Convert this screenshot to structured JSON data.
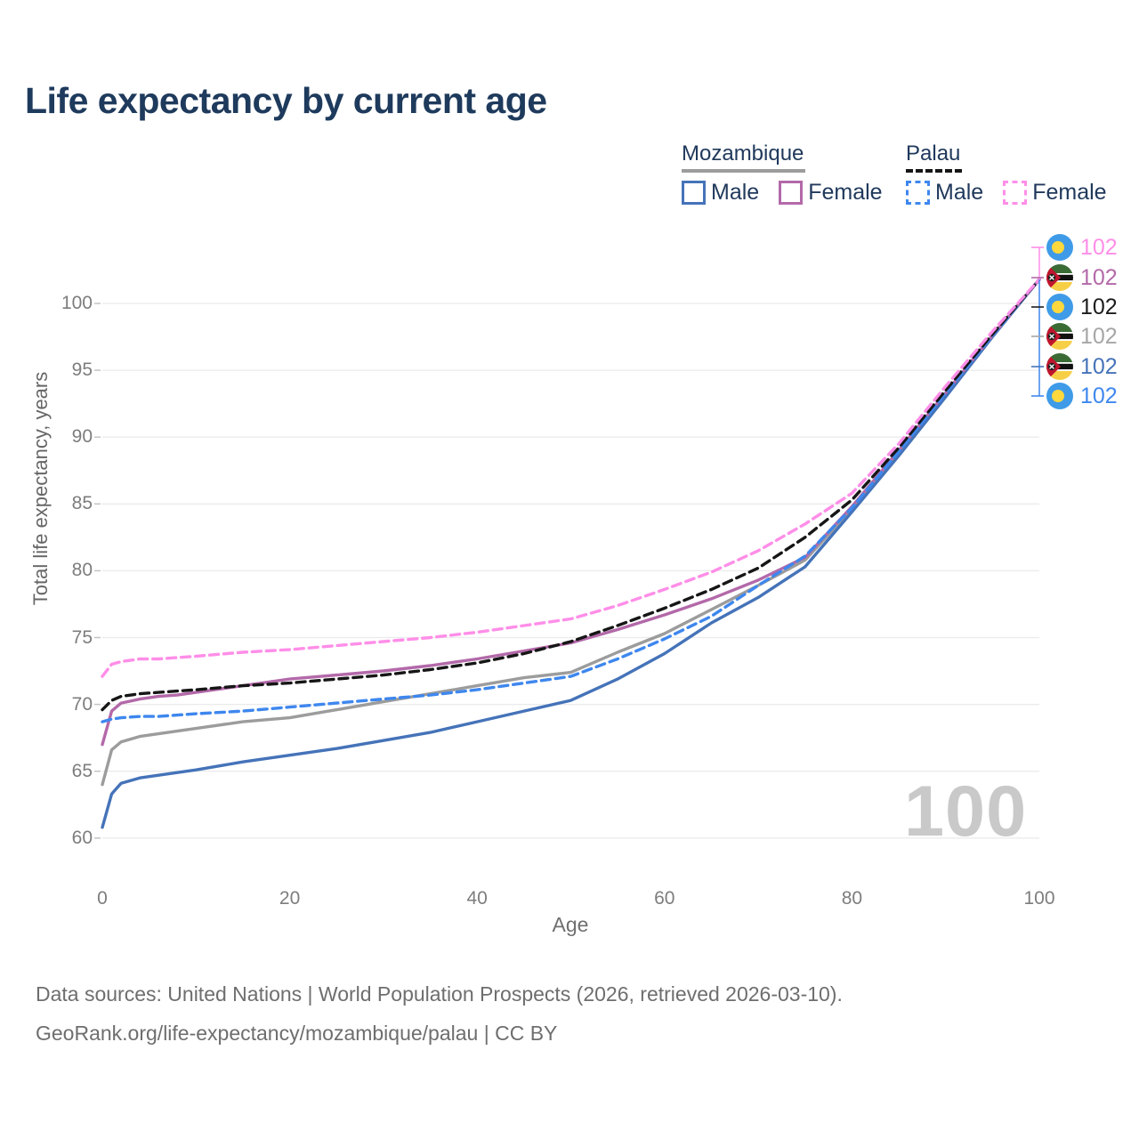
{
  "title": "Life expectancy by current age",
  "watermark_age": "100",
  "colors": {
    "title": "#1e3a5c",
    "mozambique_male": "#4573b9",
    "mozambique_female": "#b369a9",
    "mozambique_both": "#9c9c9c",
    "palau_male": "#3e87ee",
    "palau_both": "#161616",
    "palau_female": "#ff8ee8",
    "grid": "#ebebeb",
    "axis_text": "#7d7d7d",
    "watermark": "#c9c9c9"
  },
  "legend": {
    "groups": [
      {
        "label": "Mozambique",
        "underline_style": "solid",
        "underline_color": "#9c9c9c",
        "items": [
          {
            "label": "Male",
            "color": "#4573b9",
            "dashed": false
          },
          {
            "label": "Female",
            "color": "#b369a9",
            "dashed": false
          }
        ]
      },
      {
        "label": "Palau",
        "underline_style": "dashed",
        "underline_color": "#161616",
        "items": [
          {
            "label": "Male",
            "color": "#3e87ee",
            "dashed": true
          },
          {
            "label": "Female",
            "color": "#ff8ee8",
            "dashed": true
          }
        ]
      }
    ]
  },
  "chart_data": {
    "type": "line",
    "title": "Life expectancy by current age",
    "xlabel": "Age",
    "ylabel": "Total life expectancy, years",
    "x_ticks": [
      0,
      20,
      40,
      60,
      80,
      100
    ],
    "y_ticks": [
      60,
      65,
      70,
      75,
      80,
      85,
      90,
      95,
      100
    ],
    "xlim": [
      0,
      100
    ],
    "ylim": [
      59,
      103
    ],
    "grid": "horizontal",
    "legend_position": "top-right",
    "x": [
      0,
      1,
      2,
      4,
      6,
      8,
      10,
      15,
      20,
      25,
      30,
      35,
      40,
      45,
      50,
      55,
      60,
      65,
      70,
      75,
      80,
      85,
      90,
      95,
      100
    ],
    "series": [
      {
        "id": "mozambique-both",
        "name": "Mozambique (both sexes)",
        "country": "Mozambique",
        "sex": "Both",
        "color": "#9c9c9c",
        "dashed": false,
        "values": [
          64.0,
          66.6,
          67.2,
          67.6,
          67.8,
          68.0,
          68.2,
          68.7,
          69.0,
          69.6,
          70.2,
          70.8,
          71.4,
          72.0,
          72.4,
          73.9,
          75.3,
          77.1,
          78.9,
          80.8,
          84.6,
          88.8,
          93.2,
          97.6,
          101.8
        ]
      },
      {
        "id": "mozambique-male",
        "name": "Mozambique Male",
        "country": "Mozambique",
        "sex": "Male",
        "color": "#4573b9",
        "dashed": false,
        "values": [
          60.8,
          63.3,
          64.1,
          64.5,
          64.7,
          64.9,
          65.1,
          65.7,
          66.2,
          66.7,
          67.3,
          67.9,
          68.7,
          69.5,
          70.3,
          71.9,
          73.8,
          76.1,
          78.0,
          80.3,
          84.4,
          88.6,
          93.0,
          97.5,
          101.8
        ]
      },
      {
        "id": "mozambique-female",
        "name": "Mozambique Female",
        "country": "Mozambique",
        "sex": "Female",
        "color": "#b369a9",
        "dashed": false,
        "values": [
          67.0,
          69.5,
          70.1,
          70.4,
          70.6,
          70.7,
          70.9,
          71.4,
          71.9,
          72.2,
          72.5,
          72.9,
          73.4,
          74.0,
          74.6,
          75.6,
          76.7,
          77.9,
          79.3,
          81.0,
          84.8,
          89.0,
          93.3,
          97.6,
          101.8
        ]
      },
      {
        "id": "palau-male",
        "name": "Palau Male",
        "country": "Palau",
        "sex": "Male",
        "color": "#3e87ee",
        "dashed": true,
        "values": [
          68.7,
          68.9,
          69.0,
          69.1,
          69.1,
          69.2,
          69.3,
          69.5,
          69.8,
          70.1,
          70.4,
          70.7,
          71.1,
          71.6,
          72.1,
          73.4,
          74.9,
          76.6,
          78.9,
          81.1,
          84.7,
          88.9,
          93.3,
          97.6,
          101.8
        ]
      },
      {
        "id": "palau-both",
        "name": "Palau (both sexes)",
        "country": "Palau",
        "sex": "Both",
        "color": "#161616",
        "dashed": true,
        "values": [
          69.6,
          70.3,
          70.6,
          70.8,
          70.9,
          71.0,
          71.1,
          71.4,
          71.6,
          71.9,
          72.2,
          72.6,
          73.1,
          73.8,
          74.7,
          75.9,
          77.2,
          78.6,
          80.2,
          82.5,
          85.3,
          89.2,
          93.5,
          97.7,
          101.8
        ]
      },
      {
        "id": "palau-female",
        "name": "Palau Female",
        "country": "Palau",
        "sex": "Female",
        "color": "#ff8ee8",
        "dashed": true,
        "values": [
          72.1,
          73.0,
          73.2,
          73.4,
          73.4,
          73.5,
          73.6,
          73.9,
          74.1,
          74.4,
          74.7,
          75.0,
          75.4,
          75.9,
          76.4,
          77.4,
          78.6,
          79.9,
          81.5,
          83.5,
          85.8,
          89.5,
          93.8,
          97.9,
          101.8
        ]
      }
    ]
  },
  "end_labels": [
    {
      "value": "102",
      "flag": "palau",
      "series": "palau-female",
      "color": "#ff8ee8"
    },
    {
      "value": "102",
      "flag": "mozambique",
      "series": "mozambique-female",
      "color": "#b369a9"
    },
    {
      "value": "102",
      "flag": "palau",
      "series": "palau-both",
      "color": "#1c1c1c"
    },
    {
      "value": "102",
      "flag": "mozambique",
      "series": "mozambique-both",
      "color": "#a6a6a6"
    },
    {
      "value": "102",
      "flag": "mozambique",
      "series": "mozambique-male",
      "color": "#4573b9"
    },
    {
      "value": "102",
      "flag": "palau",
      "series": "palau-male",
      "color": "#3e87ee"
    }
  ],
  "footer": {
    "line1": "Data sources: United Nations | World Population Prospects (2026, retrieved 2026-03-10).",
    "line2": "GeoRank.org/life-expectancy/mozambique/palau | CC BY"
  }
}
